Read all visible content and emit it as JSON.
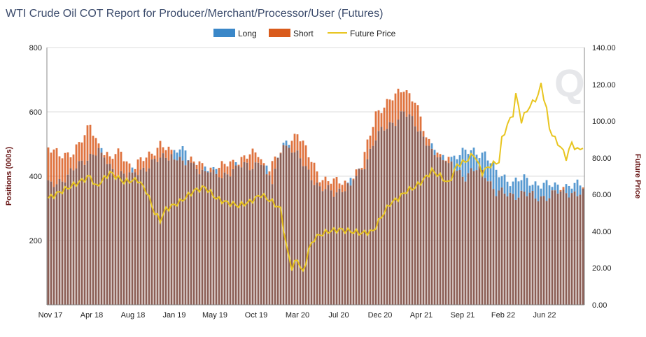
{
  "chart_data": {
    "type": "bar",
    "title": "WTI Crude Oil COT Report for Producer/Merchant/Processor/User (Futures)",
    "ylabel": "Positions (000s)",
    "y2label": "Future Price",
    "ylim": [
      0,
      800
    ],
    "y2lim": [
      0,
      140
    ],
    "yticks": [
      "200",
      "400",
      "600",
      "800"
    ],
    "y2ticks": [
      "0.00",
      "20.00",
      "40.00",
      "60.00",
      "80.00",
      "100.00",
      "120.00",
      "140.00"
    ],
    "xticks": [
      "Nov 17",
      "Apr 18",
      "Aug 18",
      "Jan 19",
      "May 19",
      "Oct 19",
      "Mar 20",
      "Jul 20",
      "Dec 20",
      "Apr 21",
      "Sep 21",
      "Feb 22",
      "Jun 22"
    ],
    "legend": [
      "Long",
      "Short",
      "Future Price"
    ],
    "legend_position": "top-center",
    "colors": {
      "long": "#3a87c8",
      "short": "#d95b1c",
      "overlap": "#8b5e55",
      "price": "#e8c520",
      "grid": "#dddddd"
    },
    "series_keypoints": {
      "long": [
        [
          0,
          370
        ],
        [
          7,
          400
        ],
        [
          14,
          460
        ],
        [
          18,
          480
        ],
        [
          23,
          420
        ],
        [
          28,
          400
        ],
        [
          33,
          420
        ],
        [
          37,
          440
        ],
        [
          42,
          460
        ],
        [
          47,
          490
        ],
        [
          52,
          430
        ],
        [
          57,
          420
        ],
        [
          62,
          400
        ],
        [
          67,
          430
        ],
        [
          72,
          430
        ],
        [
          76,
          450
        ],
        [
          80,
          380
        ],
        [
          84,
          520
        ],
        [
          88,
          470
        ],
        [
          92,
          430
        ],
        [
          97,
          360
        ],
        [
          102,
          350
        ],
        [
          107,
          370
        ],
        [
          112,
          420
        ],
        [
          117,
          520
        ],
        [
          122,
          560
        ],
        [
          127,
          600
        ],
        [
          132,
          550
        ],
        [
          136,
          500
        ],
        [
          140,
          450
        ],
        [
          144,
          460
        ],
        [
          148,
          470
        ],
        [
          152,
          480
        ],
        [
          156,
          470
        ],
        [
          160,
          410
        ],
        [
          163,
          400
        ],
        [
          166,
          380
        ],
        [
          170,
          390
        ],
        [
          174,
          380
        ],
        [
          178,
          370
        ],
        [
          182,
          370
        ]
      ],
      "short": [
        [
          0,
          490
        ],
        [
          4,
          460
        ],
        [
          9,
          480
        ],
        [
          13,
          520
        ],
        [
          15,
          560
        ],
        [
          18,
          500
        ],
        [
          22,
          450
        ],
        [
          26,
          480
        ],
        [
          30,
          420
        ],
        [
          35,
          460
        ],
        [
          40,
          500
        ],
        [
          45,
          460
        ],
        [
          50,
          450
        ],
        [
          55,
          430
        ],
        [
          60,
          420
        ],
        [
          65,
          440
        ],
        [
          70,
          460
        ],
        [
          75,
          470
        ],
        [
          78,
          420
        ],
        [
          84,
          480
        ],
        [
          89,
          540
        ],
        [
          93,
          460
        ],
        [
          97,
          400
        ],
        [
          102,
          380
        ],
        [
          107,
          380
        ],
        [
          112,
          430
        ],
        [
          117,
          600
        ],
        [
          122,
          630
        ],
        [
          127,
          680
        ],
        [
          131,
          630
        ],
        [
          135,
          520
        ],
        [
          140,
          460
        ],
        [
          145,
          430
        ],
        [
          149,
          400
        ],
        [
          153,
          420
        ],
        [
          156,
          410
        ],
        [
          160,
          350
        ],
        [
          165,
          340
        ],
        [
          170,
          350
        ],
        [
          174,
          330
        ],
        [
          178,
          340
        ],
        [
          182,
          350
        ]
      ],
      "price": [
        [
          0,
          58
        ],
        [
          5,
          62
        ],
        [
          10,
          66
        ],
        [
          15,
          70
        ],
        [
          17,
          64
        ],
        [
          22,
          72
        ],
        [
          27,
          67
        ],
        [
          32,
          68
        ],
        [
          35,
          62
        ],
        [
          38,
          50
        ],
        [
          40,
          46
        ],
        [
          42,
          52
        ],
        [
          47,
          56
        ],
        [
          52,
          62
        ],
        [
          56,
          64
        ],
        [
          60,
          58
        ],
        [
          63,
          56
        ],
        [
          68,
          54
        ],
        [
          72,
          56
        ],
        [
          76,
          60
        ],
        [
          80,
          56
        ],
        [
          83,
          52
        ],
        [
          85,
          32
        ],
        [
          87,
          20
        ],
        [
          89,
          25
        ],
        [
          91,
          17
        ],
        [
          93,
          30
        ],
        [
          95,
          36
        ],
        [
          97,
          38
        ],
        [
          100,
          40
        ],
        [
          104,
          41
        ],
        [
          108,
          40
        ],
        [
          112,
          39
        ],
        [
          116,
          40
        ],
        [
          119,
          48
        ],
        [
          122,
          55
        ],
        [
          125,
          58
        ],
        [
          128,
          62
        ],
        [
          131,
          64
        ],
        [
          134,
          68
        ],
        [
          137,
          73
        ],
        [
          140,
          70
        ],
        [
          143,
          66
        ],
        [
          146,
          76
        ],
        [
          149,
          78
        ],
        [
          152,
          82
        ],
        [
          155,
          72
        ],
        [
          158,
          76
        ],
        [
          161,
          78
        ],
        [
          162,
          90
        ],
        [
          164,
          98
        ],
        [
          166,
          104
        ],
        [
          167,
          114
        ],
        [
          168,
          108
        ],
        [
          169,
          100
        ],
        [
          171,
          106
        ],
        [
          173,
          110
        ],
        [
          175,
          114
        ],
        [
          176,
          120
        ],
        [
          178,
          106
        ],
        [
          179,
          96
        ],
        [
          181,
          90
        ],
        [
          183,
          86
        ],
        [
          185,
          80
        ],
        [
          187,
          88
        ],
        [
          189,
          84
        ],
        [
          191,
          86
        ]
      ]
    }
  }
}
